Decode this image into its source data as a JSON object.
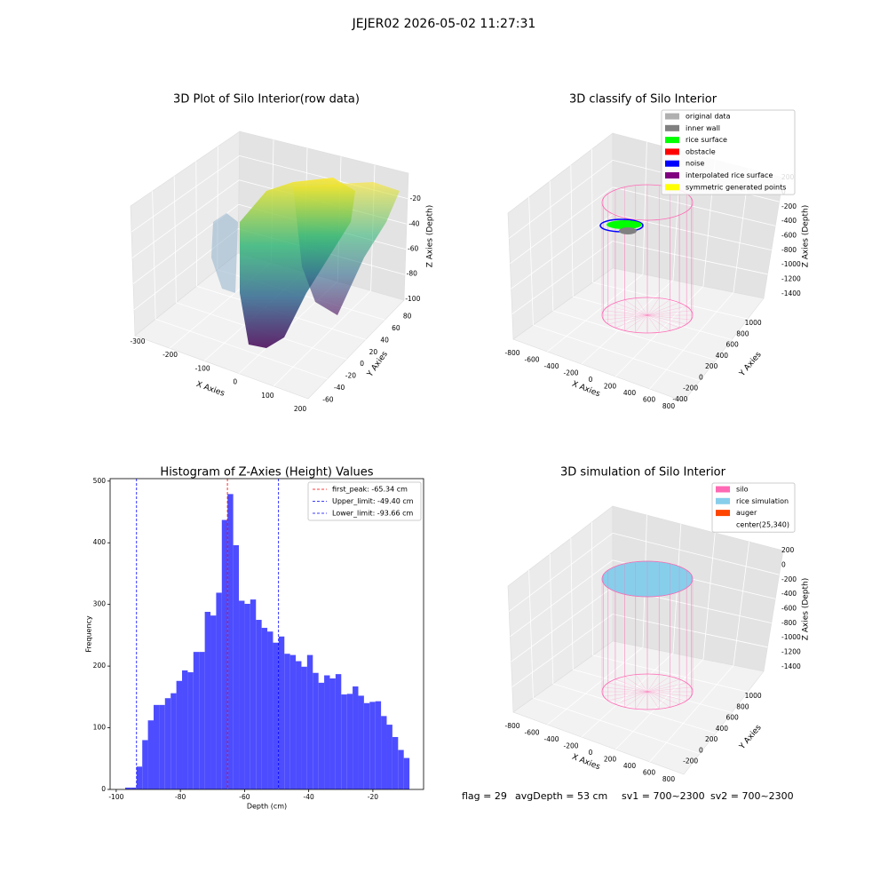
{
  "title": "JEJER02 2026-05-02 11:27:31",
  "footer": [
    "flag = 29",
    "avgDepth = 53 cm",
    "sv1 = 700~2300",
    "sv2 = 700~2300"
  ],
  "chart_data": [
    {
      "type": "scatter3d",
      "title": "3D Plot of Silo Interior(row data)",
      "xlabel": "X Axies",
      "ylabel": "Y Axies",
      "zlabel": "Z Axies (Depth)",
      "xlim": [
        -330,
        215
      ],
      "xticks": [
        -300,
        -200,
        -100,
        0,
        100,
        200
      ],
      "ylim": [
        -70,
        90
      ],
      "yticks": [
        -60,
        -40,
        -20,
        0,
        20,
        40,
        60,
        80
      ],
      "zlim": [
        -105,
        -15
      ],
      "zticks": [
        -100,
        -80,
        -60,
        -40,
        -20
      ]
    },
    {
      "type": "scatter3d",
      "title": "3D classify of Silo Interior",
      "xlabel": "X Axies",
      "ylabel": "Y Axies",
      "zlabel": "Z Axies (Depth)",
      "xlim": [
        -900,
        900
      ],
      "xticks": [
        -800,
        -600,
        -400,
        -200,
        0,
        200,
        400,
        600,
        800
      ],
      "ylim": [
        -500,
        1100
      ],
      "yticks": [
        -400,
        -200,
        0,
        200,
        400,
        600,
        800,
        1000
      ],
      "zlim": [
        -1500,
        300
      ],
      "zticks": [
        200,
        0,
        -200,
        -400,
        -600,
        -800,
        -1000,
        -1200,
        -1400
      ],
      "legend": [
        {
          "name": "original data",
          "color": "#b0b0b0"
        },
        {
          "name": "inner wall",
          "color": "#808080"
        },
        {
          "name": "rice surface",
          "color": "#00ff00"
        },
        {
          "name": "obstacle",
          "color": "#ff0000"
        },
        {
          "name": "noise",
          "color": "#0000ff"
        },
        {
          "name": "interpolated rice surface",
          "color": "#800080"
        },
        {
          "name": "symmetric generated points",
          "color": "#ffff00"
        }
      ]
    },
    {
      "type": "histogram",
      "title": "Histogram of Z-Axies (Height) Values",
      "xlabel": "Depth (cm)",
      "ylabel": "Frequency",
      "color": "#4d4dff",
      "xlim": [
        -101.9,
        -4.2
      ],
      "xticks": [
        -100,
        -80,
        -60,
        -40,
        -20
      ],
      "ylim": [
        0,
        504
      ],
      "yticks": [
        0,
        100,
        200,
        300,
        400,
        500
      ],
      "bins": [
        -97.2,
        -95.43,
        -93.66,
        -91.88,
        -90.11,
        -88.34,
        -86.57,
        -84.8,
        -83.02,
        -81.25,
        -79.48,
        -77.71,
        -75.94,
        -74.16,
        -72.39,
        -70.62,
        -68.85,
        -67.08,
        -65.3,
        -63.53,
        -61.76,
        -59.99,
        -58.22,
        -56.44,
        -54.67,
        -52.9,
        -51.13,
        -49.36,
        -47.58,
        -45.81,
        -44.04,
        -42.27,
        -40.5,
        -38.72,
        -36.95,
        -35.18,
        -33.41,
        -31.64,
        -29.86,
        -28.09,
        -26.32,
        -24.55,
        -22.78,
        -21.0,
        -19.23,
        -17.46,
        -15.69,
        -13.92,
        -12.14,
        -10.37,
        -8.6
      ],
      "values": [
        3,
        3,
        37,
        80,
        112,
        137,
        137,
        148,
        156,
        176,
        193,
        190,
        223,
        223,
        288,
        282,
        319,
        437,
        479,
        396,
        306,
        301,
        308,
        275,
        262,
        256,
        238,
        248,
        220,
        218,
        208,
        199,
        218,
        189,
        173,
        185,
        180,
        187,
        154,
        155,
        167,
        152,
        140,
        142,
        143,
        119,
        105,
        85,
        64,
        51
      ],
      "lines": [
        {
          "name": "first_peak: -65.34 cm",
          "value": -65.34,
          "color": "#ff0000"
        },
        {
          "name": "Upper_limit: -49.40 cm",
          "value": -49.4,
          "color": "#0000ff"
        },
        {
          "name": "Lower_limit: -93.66 cm",
          "value": -93.66,
          "color": "#0000ff"
        }
      ]
    },
    {
      "type": "wireframe3d",
      "title": "3D simulation of Silo Interior",
      "xlabel": "X Axies",
      "ylabel": "Y Axies",
      "zlabel": "Z Axies (Depth)",
      "xlim": [
        -900,
        900
      ],
      "xticks": [
        -800,
        -600,
        -400,
        -200,
        0,
        200,
        400,
        600,
        800
      ],
      "ylim": [
        -500,
        1100
      ],
      "yticks": [
        -200,
        0,
        200,
        400,
        600,
        800,
        1000
      ],
      "zlim": [
        -1500,
        300
      ],
      "zticks": [
        200,
        0,
        -200,
        -400,
        -600,
        -800,
        -1000,
        -1200,
        -1400
      ],
      "legend": [
        {
          "name": "silo",
          "color": "#ff69b4"
        },
        {
          "name": "rice simulation",
          "color": "#87ceeb"
        },
        {
          "name": "auger",
          "color": "#ff4500"
        },
        {
          "name": "center(25,340)"
        }
      ]
    }
  ]
}
